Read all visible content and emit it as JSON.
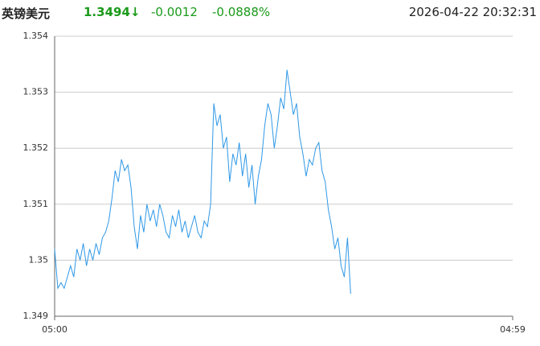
{
  "header": {
    "name": "英镑美元",
    "price": "1.3494↓",
    "change": "-0.0012",
    "change_pct": "-0.0888%",
    "time": "2026-04-22 20:32:31"
  },
  "chart_data": {
    "type": "line",
    "color": "#2f98e6",
    "grid": true,
    "xlim": [
      0,
      1439
    ],
    "xticks": [
      {
        "value": 0,
        "label": "05:00"
      },
      {
        "value": 1439,
        "label": "04:59"
      }
    ],
    "ylim": [
      1.349,
      1.354
    ],
    "yticks": [
      1.349,
      1.35,
      1.351,
      1.352,
      1.353,
      1.354
    ],
    "x": [
      0,
      10,
      20,
      30,
      40,
      50,
      60,
      70,
      80,
      90,
      100,
      110,
      120,
      130,
      140,
      150,
      160,
      170,
      180,
      190,
      200,
      210,
      220,
      230,
      240,
      250,
      260,
      270,
      280,
      290,
      300,
      310,
      320,
      330,
      340,
      350,
      360,
      370,
      380,
      390,
      400,
      410,
      420,
      430,
      440,
      450,
      460,
      470,
      480,
      490,
      500,
      510,
      520,
      530,
      540,
      550,
      560,
      570,
      580,
      590,
      600,
      610,
      620,
      630,
      640,
      650,
      660,
      670,
      680,
      690,
      700,
      710,
      720,
      730,
      740,
      750,
      760,
      770,
      780,
      790,
      800,
      810,
      820,
      830,
      840,
      850,
      860,
      870,
      880,
      890,
      900,
      910,
      920,
      930
    ],
    "values": [
      1.3502,
      1.3495,
      1.3496,
      1.3495,
      1.3497,
      1.3499,
      1.3497,
      1.3502,
      1.35,
      1.3503,
      1.3499,
      1.3502,
      1.35,
      1.3503,
      1.3501,
      1.3504,
      1.3505,
      1.3507,
      1.3511,
      1.3516,
      1.3514,
      1.3518,
      1.3516,
      1.3517,
      1.3513,
      1.3506,
      1.3502,
      1.3508,
      1.3505,
      1.351,
      1.3507,
      1.3509,
      1.3506,
      1.351,
      1.3508,
      1.3505,
      1.3504,
      1.3508,
      1.3506,
      1.3509,
      1.3505,
      1.3507,
      1.3504,
      1.3506,
      1.3508,
      1.3505,
      1.3504,
      1.3507,
      1.3506,
      1.351,
      1.3528,
      1.3524,
      1.3526,
      1.352,
      1.3522,
      1.3514,
      1.3519,
      1.3517,
      1.3521,
      1.3515,
      1.3519,
      1.3513,
      1.3517,
      1.351,
      1.3515,
      1.3518,
      1.3524,
      1.3528,
      1.3526,
      1.352,
      1.3524,
      1.3529,
      1.3527,
      1.3534,
      1.353,
      1.3526,
      1.3528,
      1.3522,
      1.3519,
      1.3515,
      1.3518,
      1.3517,
      1.352,
      1.3521,
      1.3516,
      1.3514,
      1.3509,
      1.3506,
      1.3502,
      1.3504,
      1.3499,
      1.3497,
      1.3504,
      1.3494
    ]
  }
}
